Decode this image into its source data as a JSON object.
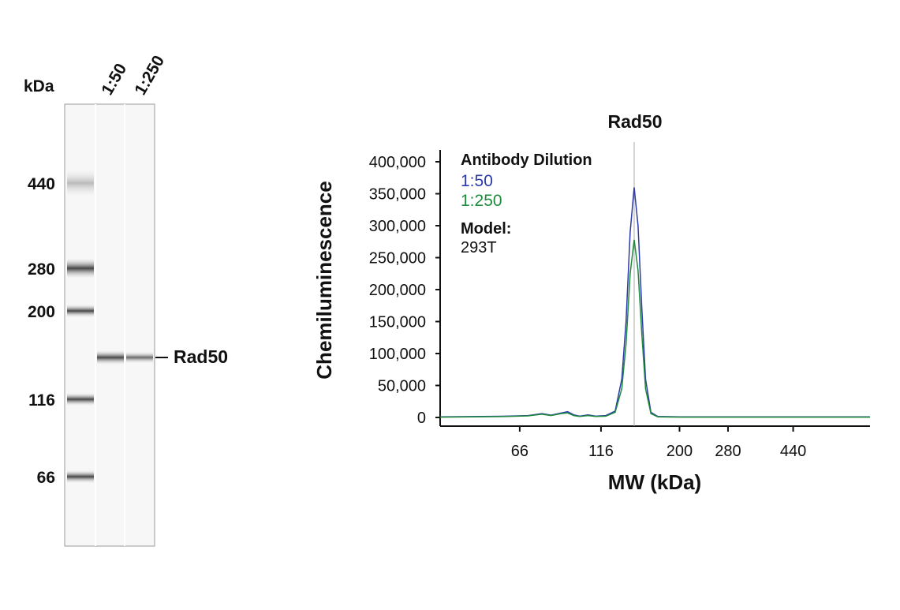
{
  "blot": {
    "unit_label": "kDa",
    "lanes": [
      "1:50",
      "1:250"
    ],
    "markers": [
      "440",
      "280",
      "200",
      "116",
      "66"
    ],
    "band_label": "Rad50"
  },
  "chart_data": {
    "type": "line",
    "title": "Rad50",
    "xlabel": "MW (kDa)",
    "ylabel": "Chemiluminescence",
    "legend_title": "Antibody Dilution",
    "annotation_title": "Model:",
    "annotation": "293T",
    "xscale": "log",
    "xlim": [
      38,
      750
    ],
    "xticks": [
      66,
      116,
      200,
      280,
      440
    ],
    "ylim": [
      -13600,
      418500
    ],
    "yticks": [
      0,
      {
        "value": 50000,
        "label": "50,000"
      },
      {
        "value": 100000,
        "label": "100,000"
      },
      {
        "value": 150000,
        "label": "150,000"
      },
      {
        "value": 200000,
        "label": "200,000"
      },
      {
        "value": 250000,
        "label": "250,000"
      },
      {
        "value": 300000,
        "label": "300,000"
      },
      {
        "value": 350000,
        "label": "350,000"
      },
      {
        "value": 400000,
        "label": "400,000"
      }
    ],
    "vline": 146,
    "x": [
      38,
      60,
      70,
      77,
      82,
      88,
      92,
      96,
      100,
      106,
      112,
      120,
      128,
      134,
      138,
      142,
      146,
      150,
      154,
      158,
      164,
      172,
      200,
      300,
      500,
      750
    ],
    "series": [
      {
        "name": "1:50",
        "color": "#2b3aa8",
        "values": [
          1000,
          2000,
          3000,
          6000,
          3500,
          7000,
          9000,
          4000,
          2000,
          4000,
          2000,
          3000,
          10000,
          60000,
          150000,
          290000,
          360000,
          300000,
          170000,
          60000,
          8000,
          1500,
          1000,
          1000,
          1000,
          1000
        ]
      },
      {
        "name": "1:250",
        "color": "#1e8a3c",
        "values": [
          500,
          1500,
          2500,
          5000,
          3000,
          6000,
          7000,
          3000,
          1500,
          3000,
          1500,
          2000,
          8000,
          45000,
          115000,
          225000,
          278000,
          230000,
          130000,
          45000,
          6000,
          1000,
          500,
          500,
          500,
          500
        ]
      }
    ]
  }
}
